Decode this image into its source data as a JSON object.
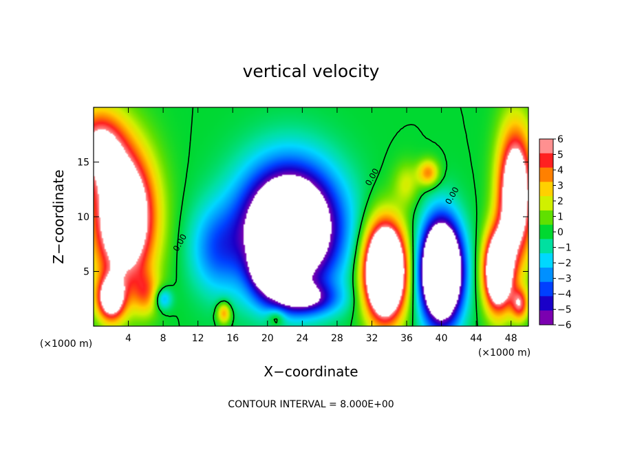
{
  "chart_data": {
    "type": "heatmap",
    "title": "vertical velocity",
    "xlabel": "X−coordinate",
    "ylabel": "Z−coordinate",
    "x_unit_left": "(×1000 m)",
    "x_unit_right": "(×1000 m)",
    "footer": "CONTOUR INTERVAL = 8.000E+00",
    "xlim": [
      0,
      50
    ],
    "ylim": [
      0,
      20
    ],
    "x_ticks": [
      4,
      8,
      12,
      16,
      20,
      24,
      28,
      32,
      36,
      40,
      44,
      48
    ],
    "x_tick_labels": [
      "4",
      "8",
      "12",
      "16",
      "20",
      "24",
      "28",
      "32",
      "36",
      "40",
      "44",
      "48"
    ],
    "y_ticks": [
      5,
      10,
      15
    ],
    "y_tick_labels": [
      "5",
      "10",
      "15"
    ],
    "colorbar": {
      "min": -6,
      "max": 6,
      "levels": [
        6,
        5,
        4,
        3,
        2,
        1,
        0,
        -1,
        -2,
        -3,
        -4,
        -5,
        -6
      ],
      "labels": [
        "6",
        "5",
        "4",
        "3",
        "2",
        "1",
        "0",
        "−1",
        "−2",
        "−3",
        "−4",
        "−5",
        "−6"
      ],
      "colors": [
        "#7b00b0",
        "#1a00c8",
        "#0040ff",
        "#0090ff",
        "#00d8ff",
        "#00e0a0",
        "#00d830",
        "#60e000",
        "#d0f000",
        "#ffd000",
        "#ff8000",
        "#ff2020",
        "#ff9090"
      ],
      "out_of_range_color": "#ffffff"
    },
    "contour_labels": [
      "0.00",
      "0.00",
      "0.00"
    ],
    "features": [
      {
        "sign": 1,
        "x": 3.5,
        "z": 10,
        "amplitude": 11,
        "sx": 3.5,
        "sz": 6
      },
      {
        "sign": 1,
        "x": 2,
        "z": 2.5,
        "amplitude": 8,
        "sx": 1.6,
        "sz": 2
      },
      {
        "sign": 1,
        "x": 0.5,
        "z": 16.5,
        "amplitude": 6,
        "sx": 3,
        "sz": 3.5
      },
      {
        "sign": 1,
        "x": 6,
        "z": 3,
        "amplitude": 3,
        "sx": 1.5,
        "sz": 2
      },
      {
        "sign": 1,
        "x": 15,
        "z": 1.2,
        "amplitude": 4,
        "sx": 0.8,
        "sz": 1
      },
      {
        "sign": 1,
        "x": 21,
        "z": 0.8,
        "amplitude": 2,
        "sx": 1,
        "sz": 0.8
      },
      {
        "sign": -1,
        "x": 22.5,
        "z": 9,
        "amplitude": 13,
        "sx": 5.5,
        "sz": 5.5
      },
      {
        "sign": -1,
        "x": 20,
        "z": 5,
        "amplitude": 5,
        "sx": 2,
        "sz": 2
      },
      {
        "sign": -1,
        "x": 24,
        "z": 2.5,
        "amplitude": 5,
        "sx": 4,
        "sz": 1.5
      },
      {
        "sign": -1,
        "x": 14,
        "z": 7,
        "amplitude": 3,
        "sx": 3,
        "sz": 4
      },
      {
        "sign": -1,
        "x": 8,
        "z": 2.5,
        "amplitude": 3,
        "sx": 1,
        "sz": 1
      },
      {
        "sign": 1,
        "x": 33.5,
        "z": 5,
        "amplitude": 16,
        "sx": 2.3,
        "sz": 4.2
      },
      {
        "sign": 1,
        "x": 38.5,
        "z": 14,
        "amplitude": 4,
        "sx": 1.2,
        "sz": 1.2
      },
      {
        "sign": 1,
        "x": 36,
        "z": 13,
        "amplitude": 2,
        "sx": 1.5,
        "sz": 2
      },
      {
        "sign": -1,
        "x": 40,
        "z": 5,
        "amplitude": 16,
        "sx": 2.3,
        "sz": 4.5
      },
      {
        "sign": 1,
        "x": 46.5,
        "z": 5,
        "amplitude": 12,
        "sx": 1.6,
        "sz": 3.5
      },
      {
        "sign": 1,
        "x": 48.5,
        "z": 12,
        "amplitude": 10,
        "sx": 2,
        "sz": 6
      },
      {
        "sign": 1,
        "x": 49,
        "z": 2,
        "amplitude": 5,
        "sx": 1,
        "sz": 1.5
      }
    ],
    "contour_level": 0
  }
}
